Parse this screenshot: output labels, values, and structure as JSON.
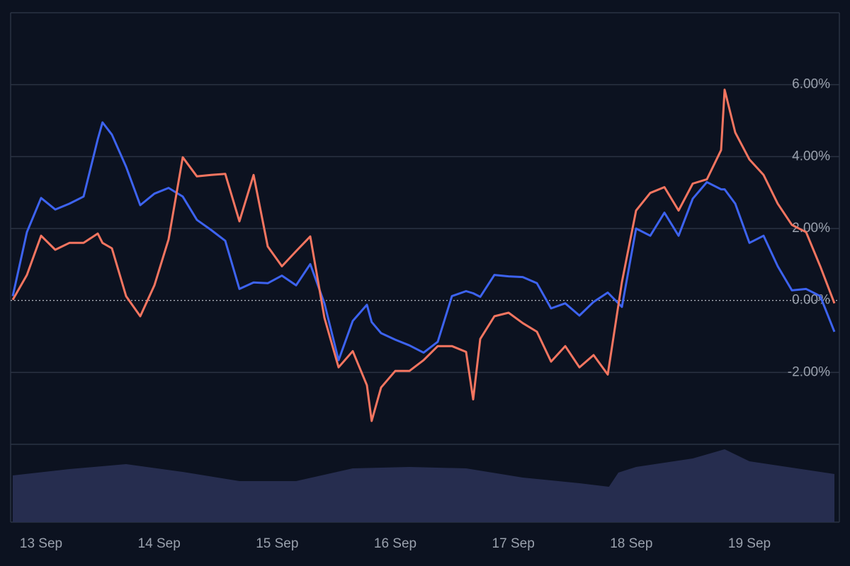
{
  "chart_data": [
    {
      "type": "line",
      "x": [
        12.76,
        12.88,
        13.0,
        13.12,
        13.24,
        13.36,
        13.48,
        13.52,
        13.6,
        13.72,
        13.84,
        13.96,
        14.08,
        14.2,
        14.32,
        14.44,
        14.56,
        14.68,
        14.8,
        14.92,
        15.04,
        15.16,
        15.28,
        15.4,
        15.52,
        15.64,
        15.76,
        15.8,
        15.88,
        16.0,
        16.12,
        16.24,
        16.36,
        16.48,
        16.6,
        16.66,
        16.72,
        16.84,
        16.96,
        17.08,
        17.2,
        17.32,
        17.44,
        17.56,
        17.68,
        17.8,
        17.92,
        18.04,
        18.16,
        18.28,
        18.4,
        18.52,
        18.64,
        18.76,
        18.79,
        18.88,
        19.0,
        19.12,
        19.24,
        19.36,
        19.48,
        19.6,
        19.72
      ],
      "series": [
        {
          "color": "#3d63f0",
          "values": [
            0.12,
            1.9,
            2.85,
            2.53,
            2.69,
            2.89,
            4.48,
            4.95,
            4.61,
            3.72,
            2.65,
            2.97,
            3.13,
            2.89,
            2.24,
            1.96,
            1.66,
            0.32,
            0.5,
            0.48,
            0.69,
            0.42,
            1.01,
            -0.08,
            -1.66,
            -0.57,
            -0.12,
            -0.6,
            -0.91,
            -1.09,
            -1.25,
            -1.45,
            -1.15,
            0.12,
            0.26,
            0.2,
            0.1,
            0.71,
            0.67,
            0.65,
            0.48,
            -0.22,
            -0.08,
            -0.42,
            -0.04,
            0.22,
            -0.18,
            2.0,
            1.8,
            2.44,
            1.8,
            2.83,
            3.29,
            3.09,
            3.09,
            2.69,
            1.6,
            1.8,
            0.95,
            0.28,
            0.32,
            0.12,
            -0.87
          ]
        },
        {
          "color": "#f47560",
          "values": [
            0.02,
            0.71,
            1.8,
            1.41,
            1.6,
            1.6,
            1.86,
            1.6,
            1.45,
            0.12,
            -0.44,
            0.42,
            1.7,
            3.98,
            3.45,
            3.49,
            3.52,
            2.2,
            3.49,
            1.5,
            0.95,
            1.37,
            1.78,
            -0.48,
            -1.86,
            -1.41,
            -2.36,
            -3.35,
            -2.42,
            -1.96,
            -1.96,
            -1.66,
            -1.27,
            -1.27,
            -1.43,
            -2.75,
            -1.07,
            -0.44,
            -0.34,
            -0.63,
            -0.87,
            -1.7,
            -1.27,
            -1.86,
            -1.52,
            -2.06,
            0.51,
            2.5,
            2.99,
            3.15,
            2.5,
            3.25,
            3.37,
            4.18,
            5.86,
            4.67,
            3.92,
            3.49,
            2.69,
            2.1,
            1.9,
            0.95,
            -0.08
          ]
        }
      ],
      "xlim": [
        12.76,
        19.72
      ],
      "xticks": [
        {
          "value": 13,
          "label": "13 Sep"
        },
        {
          "value": 14,
          "label": "14 Sep"
        },
        {
          "value": 15,
          "label": "15 Sep"
        },
        {
          "value": 16,
          "label": "16 Sep"
        },
        {
          "value": 17,
          "label": "17 Sep"
        },
        {
          "value": 18,
          "label": "18 Sep"
        },
        {
          "value": 19,
          "label": "19 Sep"
        }
      ],
      "ylim": [
        -4,
        8
      ],
      "yticks": [
        {
          "value": 6,
          "label": "6.00%"
        },
        {
          "value": 4,
          "label": "4.00%"
        },
        {
          "value": 2,
          "label": "2.00%"
        },
        {
          "value": 0,
          "label": "0.00%"
        },
        {
          "value": -2,
          "label": "-2.00%"
        }
      ],
      "grid": true,
      "zero_line": true
    },
    {
      "type": "area",
      "x": [
        12.76,
        13.24,
        13.72,
        14.2,
        14.68,
        15.16,
        15.64,
        16.12,
        16.6,
        17.08,
        17.56,
        17.81,
        17.89,
        18.04,
        18.52,
        18.79,
        19.0,
        19.48,
        19.72
      ],
      "values": [
        66,
        75,
        82,
        71,
        58,
        58,
        76,
        78,
        76,
        63,
        55,
        50,
        70,
        78,
        90,
        103,
        86,
        74,
        68
      ],
      "color": "#262d4f",
      "xlim": [
        12.76,
        19.72
      ],
      "ylim": [
        0,
        110
      ]
    }
  ]
}
